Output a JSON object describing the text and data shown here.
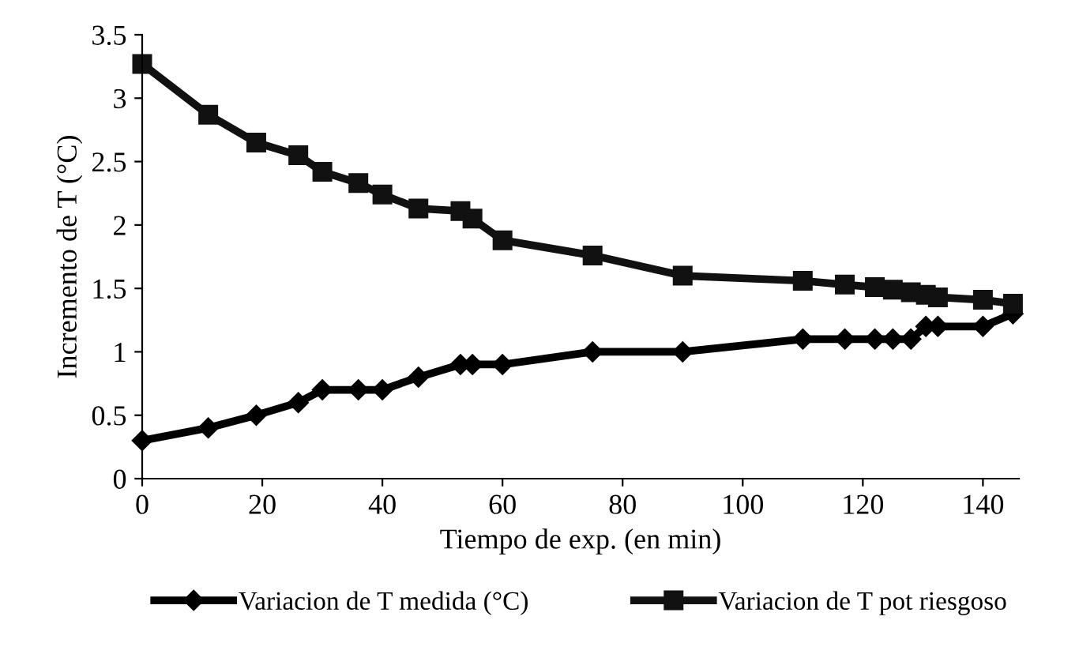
{
  "chart_data": {
    "type": "line",
    "xlabel": "Tiempo de exp. (en min)",
    "ylabel": "Incremento de T (°C)",
    "xlim": [
      0,
      146
    ],
    "xticks": [
      0,
      20,
      40,
      60,
      80,
      100,
      120,
      140
    ],
    "ylim": [
      0,
      3.5
    ],
    "yticks": [
      0,
      0.5,
      1,
      1.5,
      2,
      2.5,
      3,
      3.5
    ],
    "grid": false,
    "legend": "bottom",
    "line_style": "solid",
    "x": [
      0,
      11,
      19,
      26,
      30,
      36,
      40,
      46,
      53,
      55,
      60,
      75,
      90,
      110,
      117,
      122,
      125,
      128,
      130.5,
      132.5,
      140,
      145
    ],
    "series": [
      {
        "name": "Variacion de T medida (°C)",
        "color": "#000000",
        "marker": "diamond",
        "values": [
          0.3,
          0.4,
          0.5,
          0.6,
          0.7,
          0.7,
          0.7,
          0.8,
          0.9,
          0.9,
          0.9,
          1.0,
          1.0,
          1.1,
          1.1,
          1.1,
          1.1,
          1.1,
          1.2,
          1.2,
          1.2,
          1.3
        ]
      },
      {
        "name": "Variacion de T pot riesgoso",
        "color": "#111111",
        "marker": "square",
        "values": [
          3.27,
          2.87,
          2.65,
          2.55,
          2.42,
          2.33,
          2.24,
          2.13,
          2.11,
          2.05,
          1.88,
          1.76,
          1.6,
          1.56,
          1.53,
          1.51,
          1.49,
          1.47,
          1.45,
          1.43,
          1.41,
          1.38
        ]
      }
    ]
  }
}
